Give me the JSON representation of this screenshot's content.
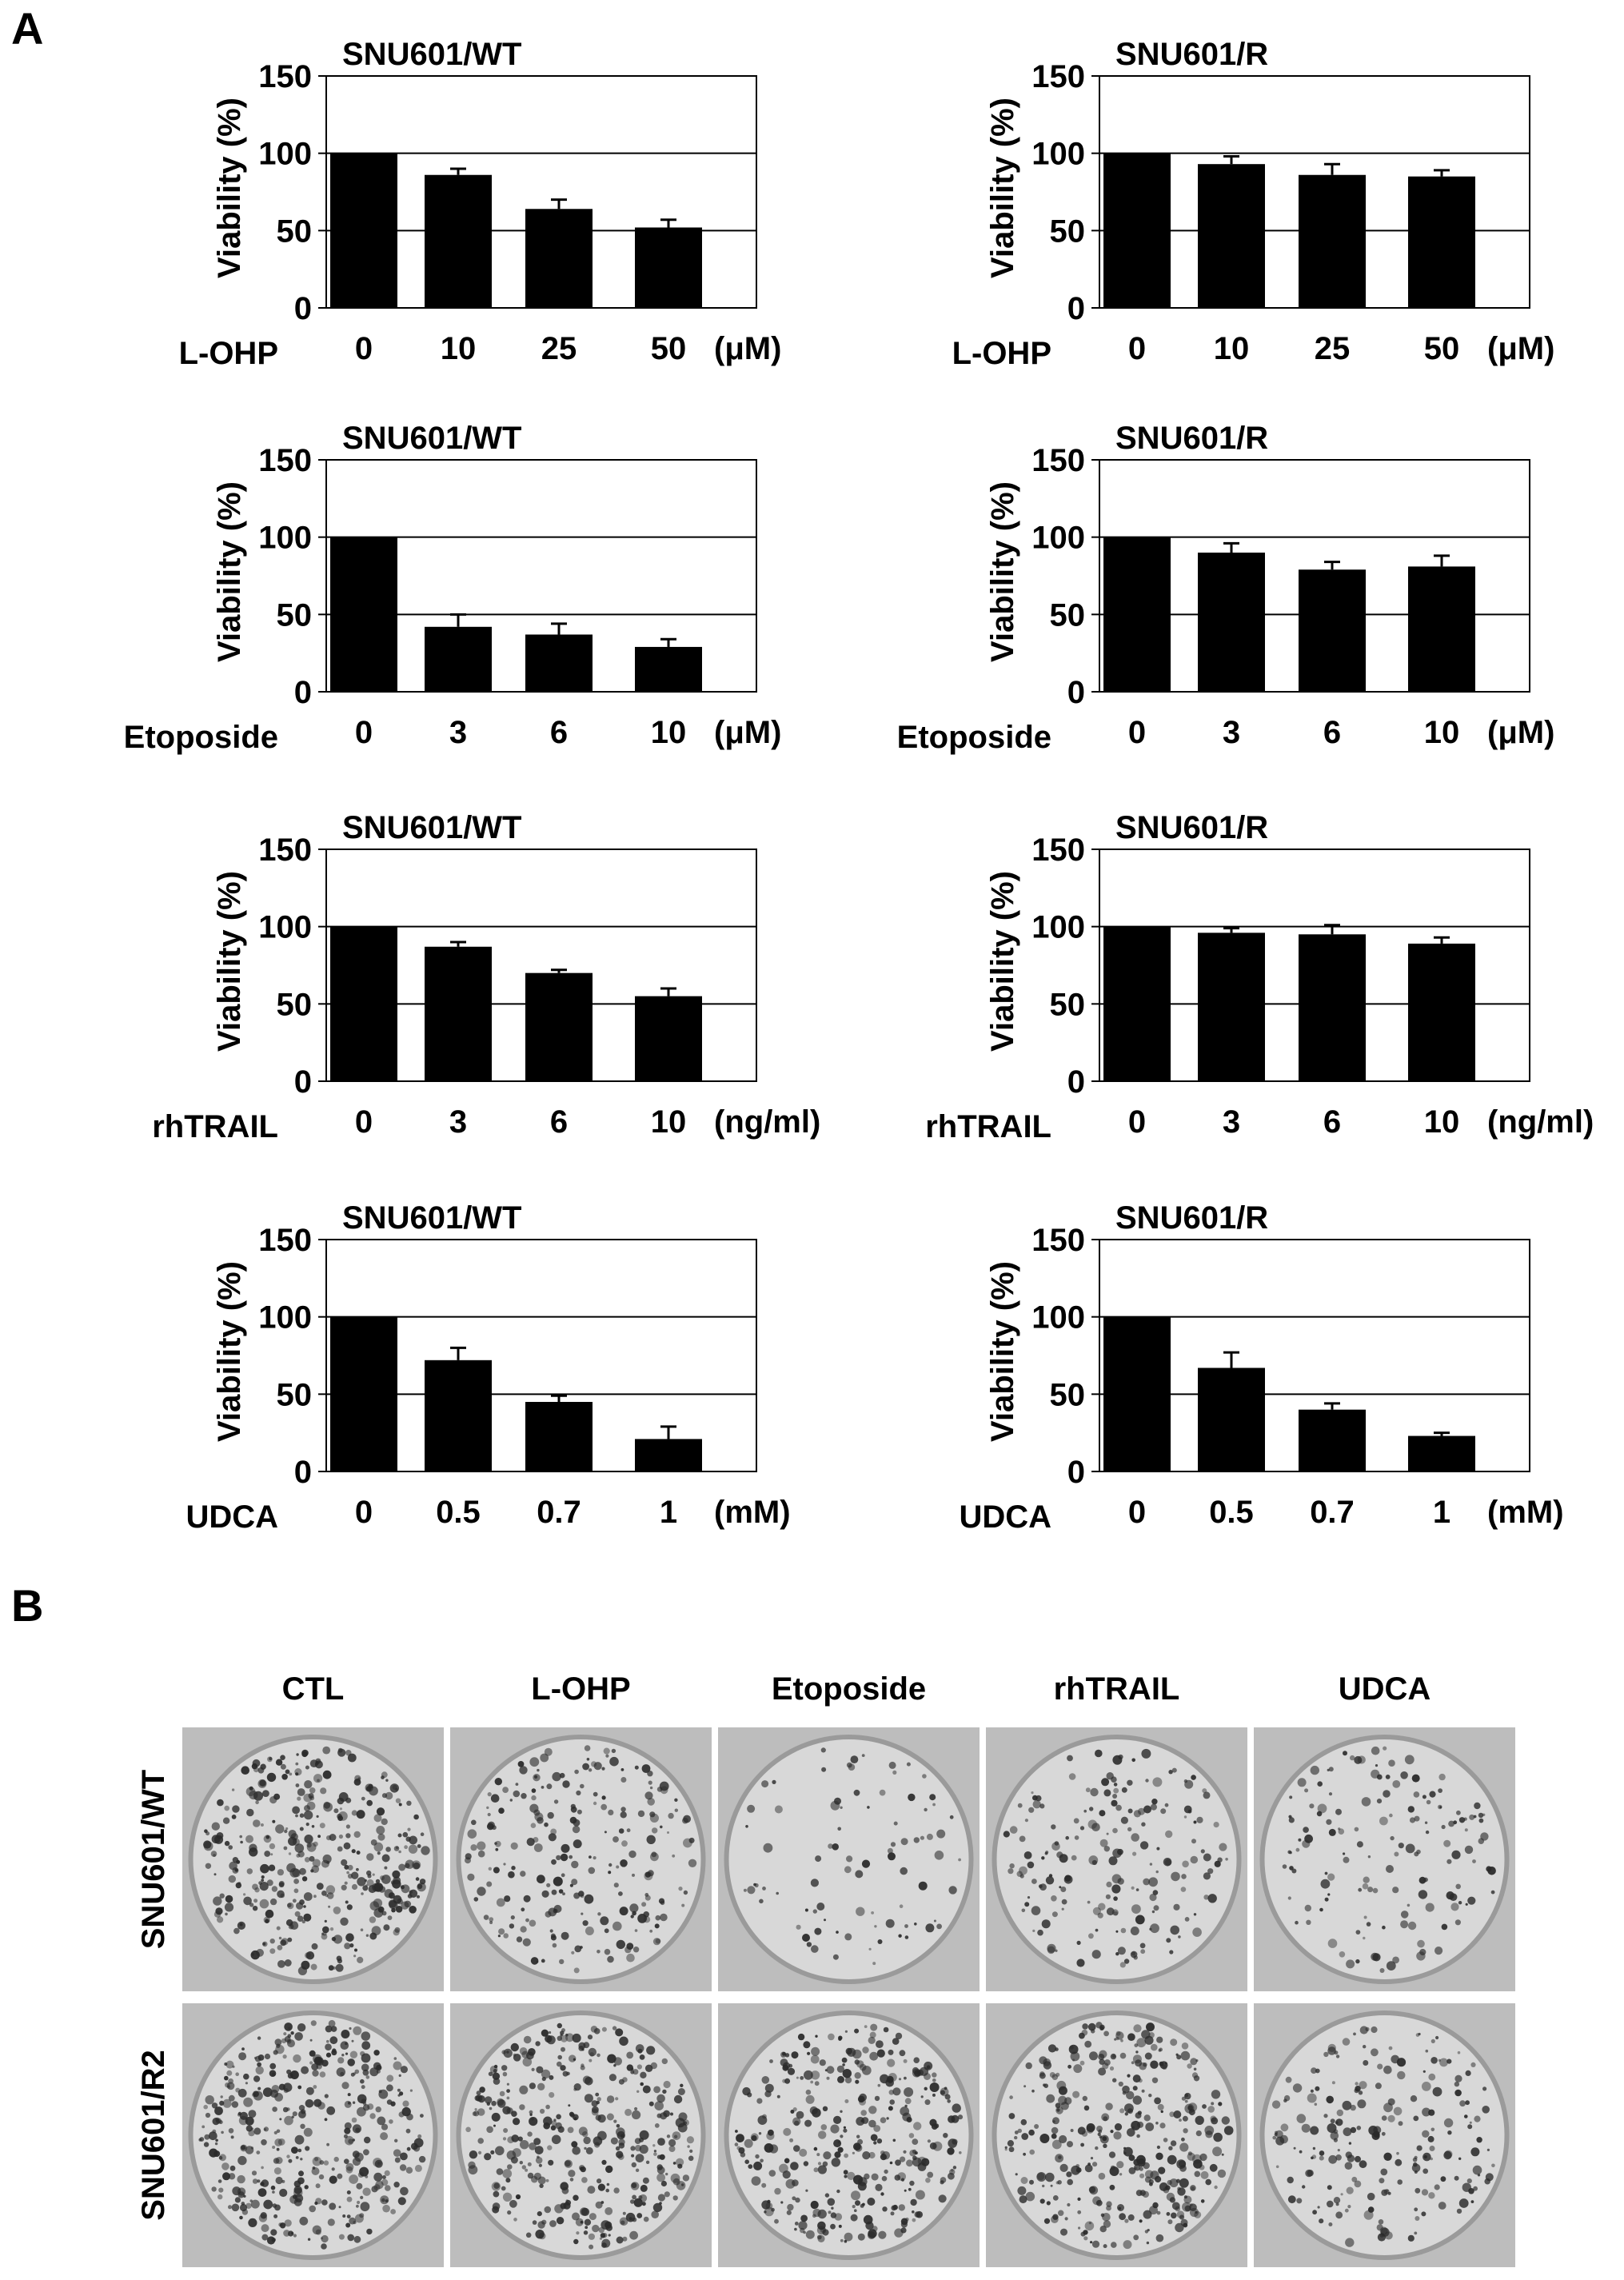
{
  "panel_a_label": "A",
  "panel_b_label": "B",
  "chart_data": [
    {
      "type": "bar",
      "title": "SNU601/WT",
      "ylabel": "Viability (%)",
      "xlabel": "L-OHP",
      "unit": "(μM)",
      "categories": [
        "0",
        "10",
        "25",
        "50"
      ],
      "values": [
        100,
        86,
        64,
        52
      ],
      "errors": [
        0,
        4,
        6,
        5
      ],
      "ylim": [
        0,
        150
      ],
      "yticks": [
        0,
        50,
        100,
        150
      ],
      "gridlines": [
        50,
        100
      ]
    },
    {
      "type": "bar",
      "title": "SNU601/R",
      "ylabel": "Viability (%)",
      "xlabel": "L-OHP",
      "unit": "(μM)",
      "categories": [
        "0",
        "10",
        "25",
        "50"
      ],
      "values": [
        100,
        93,
        86,
        85
      ],
      "errors": [
        0,
        5,
        7,
        4
      ],
      "ylim": [
        0,
        150
      ],
      "yticks": [
        0,
        50,
        100,
        150
      ],
      "gridlines": [
        50,
        100
      ]
    },
    {
      "type": "bar",
      "title": "SNU601/WT",
      "ylabel": "Viability (%)",
      "xlabel": "Etoposide",
      "unit": "(μM)",
      "categories": [
        "0",
        "3",
        "6",
        "10"
      ],
      "values": [
        100,
        42,
        37,
        29
      ],
      "errors": [
        0,
        8,
        7,
        5
      ],
      "ylim": [
        0,
        150
      ],
      "yticks": [
        0,
        50,
        100,
        150
      ],
      "gridlines": [
        50,
        100
      ]
    },
    {
      "type": "bar",
      "title": "SNU601/R",
      "ylabel": "Viability (%)",
      "xlabel": "Etoposide",
      "unit": "(μM)",
      "categories": [
        "0",
        "3",
        "6",
        "10"
      ],
      "values": [
        100,
        90,
        79,
        81
      ],
      "errors": [
        0,
        6,
        5,
        7
      ],
      "ylim": [
        0,
        150
      ],
      "yticks": [
        0,
        50,
        100,
        150
      ],
      "gridlines": [
        50,
        100
      ]
    },
    {
      "type": "bar",
      "title": "SNU601/WT",
      "ylabel": "Viability (%)",
      "xlabel": "rhTRAIL",
      "unit": "(ng/ml)",
      "categories": [
        "0",
        "3",
        "6",
        "10"
      ],
      "values": [
        100,
        87,
        70,
        55
      ],
      "errors": [
        0,
        3,
        2,
        5
      ],
      "ylim": [
        0,
        150
      ],
      "yticks": [
        0,
        50,
        100,
        150
      ],
      "gridlines": [
        50,
        100
      ]
    },
    {
      "type": "bar",
      "title": "SNU601/R",
      "ylabel": "Viability (%)",
      "xlabel": "rhTRAIL",
      "unit": "(ng/ml)",
      "categories": [
        "0",
        "3",
        "6",
        "10"
      ],
      "values": [
        100,
        96,
        95,
        89
      ],
      "errors": [
        0,
        3,
        6,
        4
      ],
      "ylim": [
        0,
        150
      ],
      "yticks": [
        0,
        50,
        100,
        150
      ],
      "gridlines": [
        50,
        100
      ]
    },
    {
      "type": "bar",
      "title": "SNU601/WT",
      "ylabel": "Viability (%)",
      "xlabel": "UDCA",
      "unit": "(mM)",
      "categories": [
        "0",
        "0.5",
        "0.7",
        "1"
      ],
      "values": [
        100,
        72,
        45,
        21
      ],
      "errors": [
        0,
        8,
        4,
        8
      ],
      "ylim": [
        0,
        150
      ],
      "yticks": [
        0,
        50,
        100,
        150
      ],
      "gridlines": [
        50,
        100
      ]
    },
    {
      "type": "bar",
      "title": "SNU601/R",
      "ylabel": "Viability (%)",
      "xlabel": "UDCA",
      "unit": "(mM)",
      "categories": [
        "0",
        "0.5",
        "0.7",
        "1"
      ],
      "values": [
        100,
        67,
        40,
        23
      ],
      "errors": [
        0,
        10,
        4,
        2
      ],
      "ylim": [
        0,
        150
      ],
      "yticks": [
        0,
        50,
        100,
        150
      ],
      "gridlines": [
        50,
        100
      ]
    }
  ],
  "colony_panel": {
    "columns": [
      "CTL",
      "L-OHP",
      "Etoposide",
      "rhTRAIL",
      "UDCA"
    ],
    "rows": [
      "SNU601/WT",
      "SNU601/R2"
    ],
    "colony_density": [
      [
        0.9,
        0.55,
        0.2,
        0.45,
        0.35
      ],
      [
        0.95,
        0.9,
        0.8,
        0.85,
        0.5
      ]
    ],
    "dish_color": "#d8d8d8",
    "colony_color": "#2a2a2a"
  }
}
